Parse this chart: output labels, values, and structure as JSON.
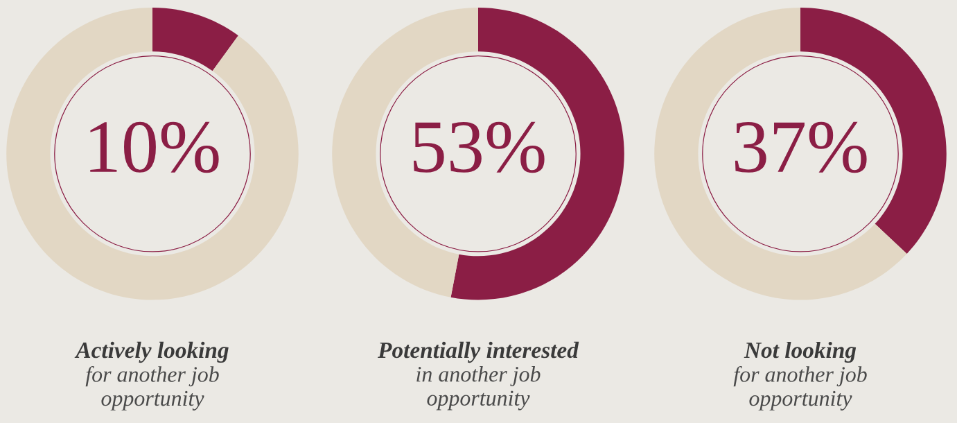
{
  "chart_data": [
    {
      "type": "donut",
      "title": "Actively looking",
      "subtitle": "for another job\nopportunity",
      "categories": [
        null,
        null
      ],
      "values": [
        10,
        90
      ],
      "colors": [
        "#8b1e45",
        "#e2d7c4"
      ],
      "value_labels": [
        "10%",
        null
      ]
    },
    {
      "type": "donut",
      "title": "Potentially interested",
      "subtitle": "in another job\nopportunity",
      "categories": [
        null,
        null
      ],
      "values": [
        53,
        47
      ],
      "colors": [
        "#8b1e45",
        "#e2d7c4"
      ],
      "value_labels": [
        "53%",
        null
      ]
    },
    {
      "type": "donut",
      "title": "Not looking",
      "subtitle": "for another job\nopportunity",
      "categories": [
        null,
        null
      ],
      "values": [
        37,
        63
      ],
      "colors": [
        "#8b1e45",
        "#e2d7c4"
      ],
      "value_labels": [
        "37%",
        null
      ]
    }
  ]
}
